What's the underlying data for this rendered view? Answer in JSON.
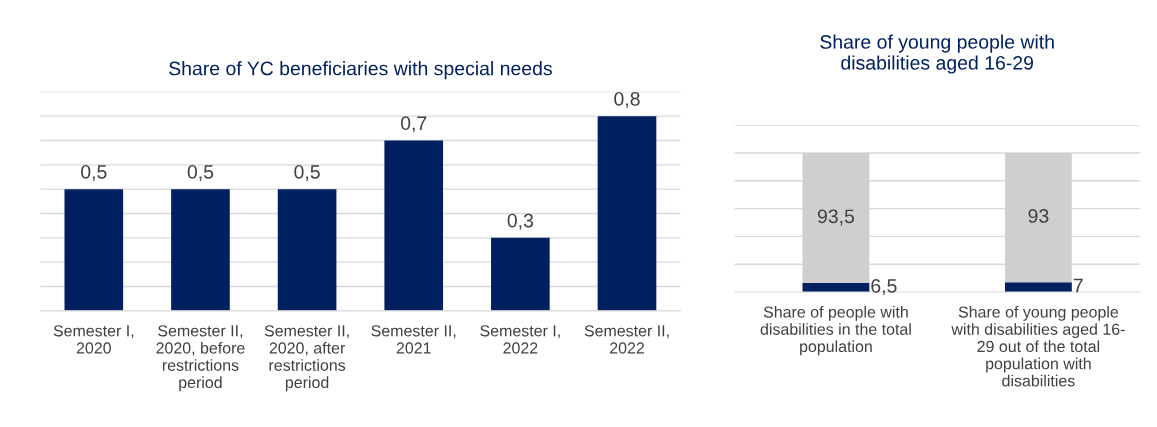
{
  "chart_data": [
    {
      "type": "bar",
      "title": "Share of YC beneficiaries with special needs",
      "categories": [
        "Semester I,\n2020",
        "Semester II,\n2020, before\nrestrictions\nperiod",
        "Semester II,\n2020, after\nrestrictions\nperiod",
        "Semester II,\n2021",
        "Semester I,\n2022",
        "Semester II,\n2022"
      ],
      "values": [
        0.5,
        0.5,
        0.5,
        0.7,
        0.3,
        0.8
      ],
      "value_labels": [
        "0,5",
        "0,5",
        "0,5",
        "0,7",
        "0,3",
        "0,8"
      ],
      "color": "#002060",
      "ylim": [
        0,
        0.9
      ],
      "yticks": [
        {
          "value": 0.1,
          "label": null
        },
        {
          "value": 0.2,
          "label": null
        },
        {
          "value": 0.3,
          "label": null
        },
        {
          "value": 0.4,
          "label": null
        },
        {
          "value": 0.5,
          "label": null
        },
        {
          "value": 0.6,
          "label": null
        },
        {
          "value": 0.7,
          "label": null
        },
        {
          "value": 0.8,
          "label": null
        },
        {
          "value": 0.9,
          "label": null
        }
      ],
      "tick_labels": "x",
      "grid": "y"
    },
    {
      "type": "bar",
      "title": "Share of young people with\ndisabilities aged 16-29",
      "stacked": true,
      "categories": [
        "Share of people with\ndisabilities in the total\npopulation",
        "Share of young people\nwith disabilities aged 16-\n29 out of the total\npopulation with\ndisabilities"
      ],
      "series": [
        {
          "color": "#002060",
          "values": [
            6.5,
            7
          ],
          "value_labels": [
            "6,5",
            "7"
          ]
        },
        {
          "color": "#d0cece",
          "values": [
            93.5,
            93
          ],
          "value_labels": [
            "93,5",
            "93"
          ]
        }
      ],
      "ylim": [
        0,
        120
      ],
      "yticks": [
        {
          "value": 20,
          "label": null
        },
        {
          "value": 40,
          "label": null
        },
        {
          "value": 60,
          "label": null
        },
        {
          "value": 80,
          "label": null
        },
        {
          "value": 100,
          "label": null
        },
        {
          "value": 120,
          "label": null
        }
      ],
      "tick_labels": "x",
      "grid": "y"
    }
  ]
}
